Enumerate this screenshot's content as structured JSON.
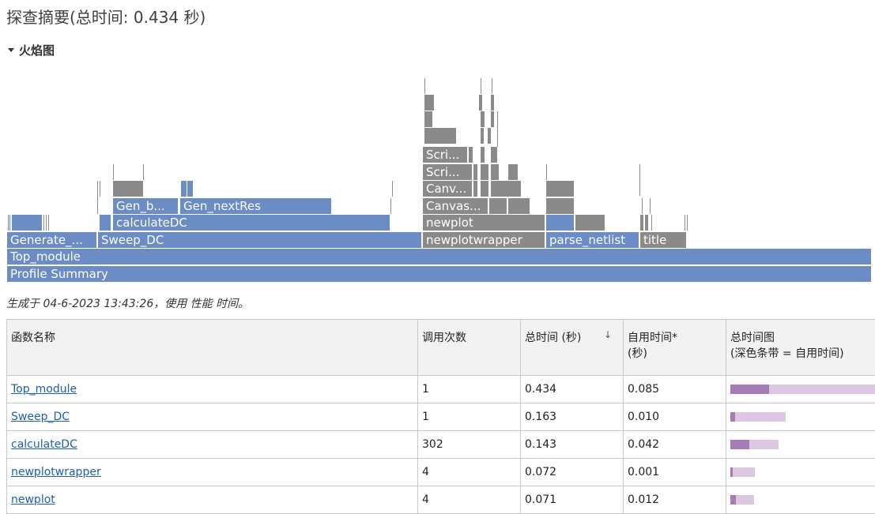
{
  "page": {
    "title": "探查摘要(总时间: 0.434 秒)",
    "section_label": "火焰图",
    "generated_note": "生成于 04-6-2023 13:43:26，使用 性能 时间。"
  },
  "flame": {
    "labels": {
      "profile_summary": "Profile Summary",
      "top_module": "Top_module",
      "generate": "Generate_...",
      "sweep_dc": "Sweep_DC",
      "newplotwrapper": "newplotwrapper",
      "parse_netlist": "parse_netlist",
      "title": "title",
      "calculatedc": "calculateDC",
      "newplot": "newplot",
      "gen_b": "Gen_b...",
      "gen_nextres": "Gen_nextRes",
      "canvas1": "Canvas...",
      "canvas2": "Canv...",
      "scri1": "Scri...",
      "scri2": "Scri..."
    },
    "colors": {
      "blue": "#6b8cc4",
      "gray": "#8a8a8a"
    }
  },
  "table": {
    "headers": {
      "name": "函数名称",
      "calls": "调用次数",
      "total": "总时间 (秒)",
      "self_line1": "自用时间*",
      "self_line2": "(秒)",
      "chart_line1": "总时间图",
      "chart_line2": "(深色条带 = 自用时间)"
    },
    "sort_icon": "down-arrow",
    "rows": [
      {
        "name": "Top_module",
        "calls": "1",
        "total": "0.434",
        "self": "0.085",
        "total_frac": 1.0,
        "self_frac": 0.196
      },
      {
        "name": "Sweep_DC",
        "calls": "1",
        "total": "0.163",
        "self": "0.010",
        "total_frac": 0.376,
        "self_frac": 0.023
      },
      {
        "name": "calculateDC",
        "calls": "302",
        "total": "0.143",
        "self": "0.042",
        "total_frac": 0.329,
        "self_frac": 0.097
      },
      {
        "name": "newplotwrapper",
        "calls": "4",
        "total": "0.072",
        "self": "0.001",
        "total_frac": 0.166,
        "self_frac": 0.002
      },
      {
        "name": "newplot",
        "calls": "4",
        "total": "0.071",
        "self": "0.012",
        "total_frac": 0.164,
        "self_frac": 0.028
      }
    ],
    "colors": {
      "total_bar": "#dcc8e0",
      "self_bar": "#a57cb8"
    }
  }
}
